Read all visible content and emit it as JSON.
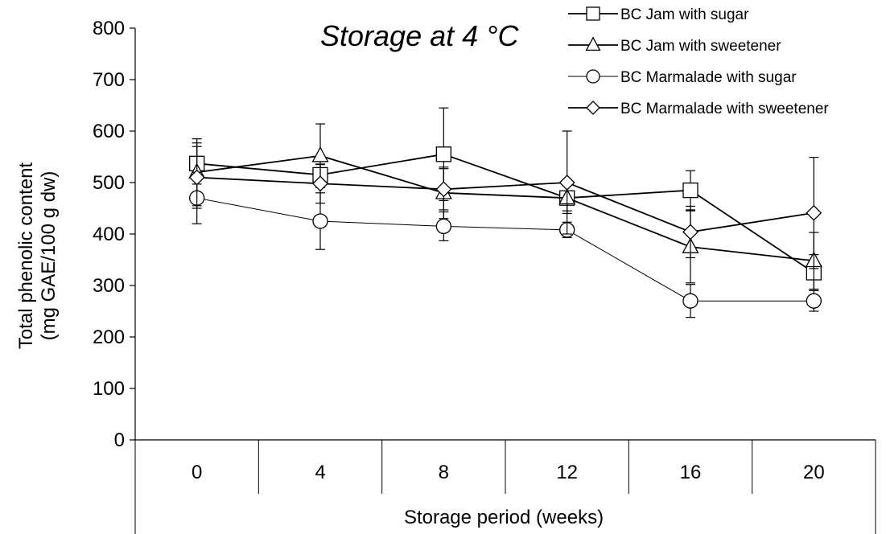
{
  "chart_data": {
    "type": "line",
    "title": "Storage at 4 °C",
    "xlabel": "Storage period (weeks)",
    "ylabel": "Total phenolic content (mg GAE/100 g dw)",
    "ylabel_line1": "Total phenolic content",
    "ylabel_line2": "(mg GAE/100 g dw)",
    "categories": [
      "0",
      "4",
      "8",
      "12",
      "16",
      "20"
    ],
    "ylim": [
      0,
      800
    ],
    "yticks": [
      "0",
      "100",
      "200",
      "300",
      "400",
      "500",
      "600",
      "700",
      "800"
    ],
    "grid": false,
    "legend_position": "top-right",
    "series": [
      {
        "name": "BC Jam with sugar",
        "marker": "square",
        "values": [
          537,
          515,
          555,
          470,
          485,
          325
        ],
        "errors": [
          40,
          20,
          90,
          25,
          38,
          35
        ]
      },
      {
        "name": "BC Jam with sweetener",
        "marker": "triangle",
        "values": [
          520,
          552,
          480,
          470,
          375,
          348
        ],
        "errors": [
          65,
          62,
          50,
          30,
          70,
          55
        ]
      },
      {
        "name": "BC Marmalade with sugar",
        "marker": "circle",
        "values": [
          470,
          425,
          415,
          408,
          270,
          270
        ],
        "errors": [
          50,
          55,
          28,
          15,
          32,
          20
        ]
      },
      {
        "name": "BC Marmalade with sweetener",
        "marker": "diamond",
        "values": [
          510,
          498,
          487,
          500,
          404,
          441
        ],
        "errors": [
          60,
          38,
          40,
          100,
          50,
          108
        ]
      }
    ]
  }
}
